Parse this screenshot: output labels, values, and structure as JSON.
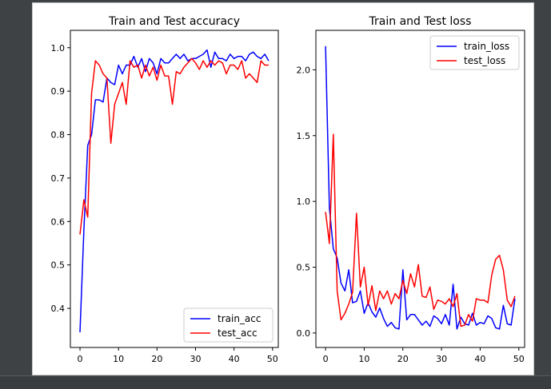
{
  "chart_data": [
    {
      "type": "line",
      "title": "Train and Test accuracy",
      "xlabel": "",
      "ylabel": "",
      "xlim": [
        -2.5,
        51.5
      ],
      "ylim": [
        0.31,
        1.04
      ],
      "xticks": [
        0,
        10,
        20,
        30,
        40,
        50
      ],
      "yticks": [
        0.4,
        0.5,
        0.6,
        0.7,
        0.8,
        0.9,
        1.0
      ],
      "ytick_labels": [
        "0.4",
        "0.5",
        "0.6",
        "0.7",
        "0.8",
        "0.9",
        "1.0"
      ],
      "legend_position": "lower-right",
      "x": [
        0,
        1,
        2,
        3,
        4,
        5,
        6,
        7,
        8,
        9,
        10,
        11,
        12,
        13,
        14,
        15,
        16,
        17,
        18,
        19,
        20,
        21,
        22,
        23,
        24,
        25,
        26,
        27,
        28,
        29,
        30,
        31,
        32,
        33,
        34,
        35,
        36,
        37,
        38,
        39,
        40,
        41,
        42,
        43,
        44,
        45,
        46,
        47,
        48,
        49
      ],
      "series": [
        {
          "name": "train_acc",
          "color": "#0000ff",
          "values": [
            0.345,
            0.58,
            0.775,
            0.8,
            0.88,
            0.88,
            0.875,
            0.93,
            0.92,
            0.915,
            0.96,
            0.94,
            0.96,
            0.96,
            0.98,
            0.955,
            0.975,
            0.945,
            0.975,
            0.965,
            0.94,
            0.975,
            0.965,
            0.965,
            0.975,
            0.985,
            0.975,
            0.985,
            0.97,
            0.975,
            0.975,
            0.98,
            0.985,
            0.995,
            0.955,
            0.99,
            0.975,
            0.975,
            0.97,
            0.985,
            0.975,
            0.98,
            0.98,
            0.97,
            0.985,
            0.99,
            0.98,
            0.975,
            0.985,
            0.97
          ]
        },
        {
          "name": "test_acc",
          "color": "#ff0000",
          "values": [
            0.57,
            0.65,
            0.61,
            0.895,
            0.97,
            0.96,
            0.94,
            0.93,
            0.78,
            0.87,
            0.895,
            0.92,
            0.87,
            0.97,
            0.955,
            0.96,
            0.93,
            0.96,
            0.935,
            0.955,
            0.925,
            0.96,
            0.935,
            0.935,
            0.87,
            0.945,
            0.94,
            0.955,
            0.965,
            0.975,
            0.965,
            0.95,
            0.97,
            0.955,
            0.97,
            0.96,
            0.97,
            0.965,
            0.94,
            0.96,
            0.96,
            0.95,
            0.97,
            0.93,
            0.94,
            0.93,
            0.92,
            0.97,
            0.96,
            0.96
          ]
        }
      ]
    },
    {
      "type": "line",
      "title": "Train and Test loss",
      "xlabel": "",
      "ylabel": "",
      "xlim": [
        -2.5,
        51.5
      ],
      "ylim": [
        -0.11,
        2.3
      ],
      "xticks": [
        0,
        10,
        20,
        30,
        40,
        50
      ],
      "yticks": [
        0.0,
        0.5,
        1.0,
        1.5,
        2.0
      ],
      "ytick_labels": [
        "0.0",
        "0.5",
        "1.0",
        "1.5",
        "2.0"
      ],
      "legend_position": "upper-right",
      "x": [
        0,
        1,
        2,
        3,
        4,
        5,
        6,
        7,
        8,
        9,
        10,
        11,
        12,
        13,
        14,
        15,
        16,
        17,
        18,
        19,
        20,
        21,
        22,
        23,
        24,
        25,
        26,
        27,
        28,
        29,
        30,
        31,
        32,
        33,
        34,
        35,
        36,
        37,
        38,
        39,
        40,
        41,
        42,
        43,
        44,
        45,
        46,
        47,
        48,
        49
      ],
      "series": [
        {
          "name": "train_loss",
          "color": "#0000ff",
          "values": [
            2.18,
            0.95,
            0.64,
            0.57,
            0.38,
            0.32,
            0.48,
            0.23,
            0.24,
            0.32,
            0.15,
            0.23,
            0.16,
            0.12,
            0.19,
            0.11,
            0.05,
            0.08,
            0.04,
            0.03,
            0.48,
            0.1,
            0.14,
            0.14,
            0.1,
            0.06,
            0.09,
            0.05,
            0.13,
            0.11,
            0.07,
            0.14,
            0.06,
            0.37,
            0.03,
            0.12,
            0.07,
            0.06,
            0.15,
            0.06,
            0.08,
            0.07,
            0.13,
            0.11,
            0.04,
            0.03,
            0.21,
            0.07,
            0.06,
            0.26
          ]
        },
        {
          "name": "test_loss",
          "color": "#ff0000",
          "values": [
            0.92,
            0.68,
            1.51,
            0.32,
            0.1,
            0.15,
            0.22,
            0.31,
            0.91,
            0.35,
            0.5,
            0.21,
            0.36,
            0.17,
            0.32,
            0.26,
            0.32,
            0.22,
            0.3,
            0.26,
            0.4,
            0.3,
            0.45,
            0.35,
            0.52,
            0.28,
            0.27,
            0.35,
            0.18,
            0.25,
            0.24,
            0.22,
            0.26,
            0.2,
            0.3,
            0.05,
            0.06,
            0.14,
            0.09,
            0.26,
            0.25,
            0.25,
            0.23,
            0.44,
            0.56,
            0.59,
            0.48,
            0.25,
            0.2,
            0.28
          ]
        }
      ]
    }
  ]
}
